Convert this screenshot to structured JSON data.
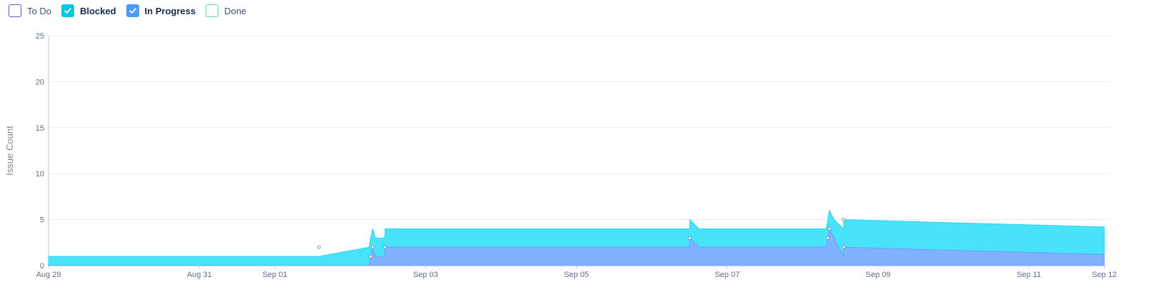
{
  "legend": [
    {
      "label": "To Do",
      "checked": false,
      "color": "#6554c0",
      "bold": false
    },
    {
      "label": "Blocked",
      "checked": true,
      "color": "#00c7e6",
      "bold": true
    },
    {
      "label": "In Progress",
      "checked": true,
      "color": "#4c9aff",
      "bold": true
    },
    {
      "label": "Done",
      "checked": false,
      "color": "#57d9a3",
      "bold": false
    }
  ],
  "chart_data": {
    "type": "area",
    "stacked": true,
    "ylabel": "Issue Count",
    "xlabel": "",
    "ylim": [
      0,
      25
    ],
    "yticks": [
      0,
      5,
      10,
      15,
      20,
      25
    ],
    "xlim": [
      "2023-08-29",
      "2023-09-12"
    ],
    "xticks": [
      {
        "date": "2023-08-29",
        "label": "Aug 29"
      },
      {
        "date": "2023-08-31",
        "label": "Aug 31"
      },
      {
        "date": "2023-09-01",
        "label": "Sep 01"
      },
      {
        "date": "2023-09-03",
        "label": "Sep 03"
      },
      {
        "date": "2023-09-05",
        "label": "Sep 05"
      },
      {
        "date": "2023-09-07",
        "label": "Sep 07"
      },
      {
        "date": "2023-09-09",
        "label": "Sep 09"
      },
      {
        "date": "2023-09-11",
        "label": "Sep 11"
      },
      {
        "date": "2023-09-12",
        "label": "Sep 12"
      }
    ],
    "grid": true,
    "series": [
      {
        "name": "In Progress",
        "color": "#7fb1ff",
        "line": "#6ba1f7",
        "points": [
          [
            "2023-08-29T00:00",
            0
          ],
          [
            "2023-09-02T06:00",
            0
          ],
          [
            "2023-09-02T06:30",
            1
          ],
          [
            "2023-09-02T07:10",
            2
          ],
          [
            "2023-09-02T08:00",
            1
          ],
          [
            "2023-09-02T11:00",
            1
          ],
          [
            "2023-09-02T11:05",
            2
          ],
          [
            "2023-09-06T12:00",
            2
          ],
          [
            "2023-09-06T12:05",
            3
          ],
          [
            "2023-09-06T15:00",
            2
          ],
          [
            "2023-09-08T07:30",
            2
          ],
          [
            "2023-09-08T08:00",
            3
          ],
          [
            "2023-09-08T08:30",
            4
          ],
          [
            "2023-09-08T10:00",
            3
          ],
          [
            "2023-09-08T13:00",
            1
          ],
          [
            "2023-09-08T13:05",
            2
          ],
          [
            "2023-09-12T00:00",
            1.2
          ]
        ]
      },
      {
        "name": "Blocked",
        "color": "#48e2f9",
        "line": "#2fd3ec",
        "points": [
          [
            "2023-08-29T00:00",
            1
          ],
          [
            "2023-09-01T14:00",
            1
          ],
          [
            "2023-09-01T14:05",
            1
          ],
          [
            "2023-09-02T06:00",
            2
          ],
          [
            "2023-09-02T06:30",
            2
          ],
          [
            "2023-09-02T07:10",
            2
          ],
          [
            "2023-09-02T08:00",
            2
          ],
          [
            "2023-09-02T11:00",
            2
          ],
          [
            "2023-09-02T11:05",
            2
          ],
          [
            "2023-09-06T12:00",
            2
          ],
          [
            "2023-09-06T12:05",
            2
          ],
          [
            "2023-09-06T15:00",
            2
          ],
          [
            "2023-09-08T07:30",
            2
          ],
          [
            "2023-09-08T08:00",
            2
          ],
          [
            "2023-09-08T08:30",
            2
          ],
          [
            "2023-09-08T10:00",
            2
          ],
          [
            "2023-09-08T13:00",
            3
          ],
          [
            "2023-09-08T13:05",
            3
          ],
          [
            "2023-09-12T00:00",
            3
          ]
        ]
      }
    ],
    "markers": [
      [
        "2023-09-01T14:05",
        2
      ],
      [
        "2023-09-02T06:30",
        1
      ],
      [
        "2023-09-02T07:10",
        2
      ],
      [
        "2023-09-02T11:05",
        2
      ],
      [
        "2023-09-06T12:05",
        3
      ],
      [
        "2023-09-08T08:00",
        3
      ],
      [
        "2023-09-08T08:30",
        4
      ],
      [
        "2023-09-08T13:00",
        5
      ],
      [
        "2023-09-08T13:05",
        2
      ]
    ]
  }
}
